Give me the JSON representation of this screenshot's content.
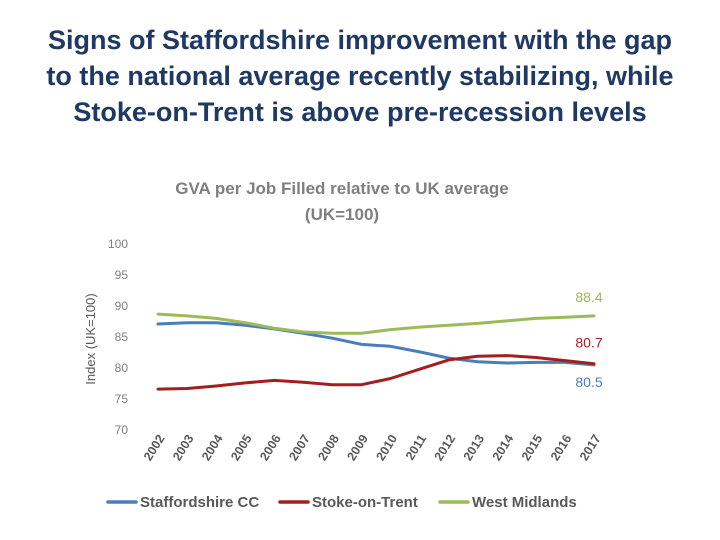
{
  "slide": {
    "title_lines": [
      "Signs of Staffordshire improvement with the gap",
      "to the national average recently stabilizing, while",
      "Stoke-on-Trent is above pre-recession levels"
    ]
  },
  "chart_data": {
    "type": "line",
    "title_lines": [
      "GVA per Job Filled relative to UK average",
      "(UK=100)"
    ],
    "xlabel": "",
    "ylabel": "Index (UK=100)",
    "ylim": [
      70,
      100
    ],
    "yticks": [
      70,
      75,
      80,
      85,
      90,
      95,
      100
    ],
    "grid": false,
    "legend_position": "bottom",
    "x": [
      "2002",
      "2003",
      "2004",
      "2005",
      "2006",
      "2007",
      "2008",
      "2009",
      "2010",
      "2011",
      "2012",
      "2013",
      "2014",
      "2015",
      "2016",
      "2017"
    ],
    "series": [
      {
        "name": "Staffordshire CC",
        "color": "#4a7ebb",
        "values": [
          87.1,
          87.3,
          87.3,
          86.9,
          86.3,
          85.6,
          84.8,
          83.8,
          83.5,
          82.6,
          81.6,
          81.0,
          80.8,
          80.9,
          80.9,
          80.5
        ],
        "end_label": "80.5"
      },
      {
        "name": "Stoke-on-Trent",
        "color": "#a31f1f",
        "values": [
          76.6,
          76.7,
          77.1,
          77.6,
          78.0,
          77.7,
          77.3,
          77.3,
          78.3,
          79.8,
          81.3,
          81.9,
          82.0,
          81.7,
          81.2,
          80.7
        ],
        "end_label": "80.7"
      },
      {
        "name": "West Midlands",
        "color": "#9bbb59",
        "values": [
          88.7,
          88.4,
          88.0,
          87.3,
          86.4,
          85.8,
          85.6,
          85.6,
          86.2,
          86.6,
          86.9,
          87.2,
          87.6,
          88.0,
          88.2,
          88.4
        ],
        "end_label": "88.4"
      }
    ]
  }
}
